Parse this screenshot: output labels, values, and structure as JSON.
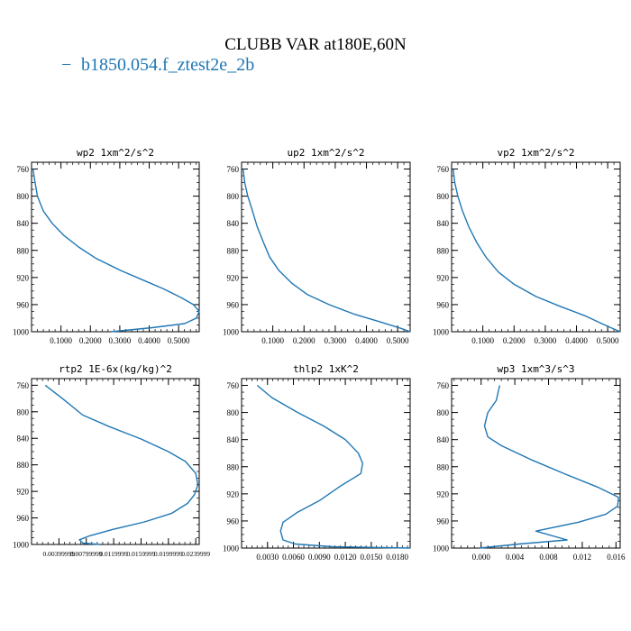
{
  "figure": {
    "title": "CLUBB VAR at180E,60N",
    "legend": {
      "label": "b1850.054.f_ztest2e_2b",
      "marker": "−",
      "color": "#1f77b4"
    }
  },
  "colors": {
    "line": "#1f77b4",
    "axis": "#000000",
    "text": "#000000",
    "background": "#ffffff"
  },
  "chart_data": [
    {
      "type": "line",
      "title": "wp2   1xm^2/s^2",
      "xlim": [
        0.0,
        0.57
      ],
      "ylim": [
        1000,
        750
      ],
      "xticks": [
        0.1,
        0.2,
        0.3,
        0.4,
        0.5
      ],
      "xticklabels": [
        "0.1000",
        "0.2000",
        "0.3000",
        "0.4000",
        "0.5000"
      ],
      "yticks": [
        760,
        800,
        840,
        880,
        920,
        960,
        1000
      ],
      "yticklabels": [
        "760",
        "800",
        "840",
        "880",
        "920",
        "960",
        "1000"
      ],
      "series": [
        {
          "name": "b1850.054.f_ztest2e_2b",
          "x": [
            0.005,
            0.01,
            0.02,
            0.04,
            0.07,
            0.11,
            0.16,
            0.22,
            0.3,
            0.38,
            0.45,
            0.51,
            0.55,
            0.57,
            0.56,
            0.52,
            0.41,
            0.27
          ],
          "y": [
            760,
            775,
            800,
            822,
            840,
            858,
            875,
            892,
            909,
            924,
            937,
            950,
            960,
            970,
            980,
            988,
            994,
            1000
          ]
        }
      ]
    },
    {
      "type": "line",
      "title": "up2   1xm^2/s^2",
      "xlim": [
        0.0,
        0.54
      ],
      "ylim": [
        1000,
        750
      ],
      "xticks": [
        0.1,
        0.2,
        0.3,
        0.4,
        0.5
      ],
      "xticklabels": [
        "0.1000",
        "0.2000",
        "0.3000",
        "0.4000",
        "0.5000"
      ],
      "yticks": [
        760,
        800,
        840,
        880,
        920,
        960,
        1000
      ],
      "yticklabels": [
        "760",
        "800",
        "840",
        "880",
        "920",
        "960",
        "1000"
      ],
      "series": [
        {
          "name": "b1850.054.f_ztest2e_2b",
          "x": [
            0.005,
            0.01,
            0.02,
            0.035,
            0.05,
            0.07,
            0.09,
            0.12,
            0.16,
            0.21,
            0.28,
            0.36,
            0.44,
            0.51,
            0.54
          ],
          "y": [
            760,
            780,
            800,
            822,
            845,
            868,
            890,
            910,
            928,
            945,
            960,
            974,
            985,
            995,
            1000
          ]
        }
      ]
    },
    {
      "type": "line",
      "title": "vp2   1xm^2/s^2",
      "xlim": [
        0.0,
        0.54
      ],
      "ylim": [
        1000,
        750
      ],
      "xticks": [
        0.1,
        0.2,
        0.3,
        0.4,
        0.5
      ],
      "xticklabels": [
        "0.1000",
        "0.2000",
        "0.3000",
        "0.4000",
        "0.5000"
      ],
      "yticks": [
        760,
        800,
        840,
        880,
        920,
        960,
        1000
      ],
      "yticklabels": [
        "760",
        "800",
        "840",
        "880",
        "920",
        "960",
        "1000"
      ],
      "series": [
        {
          "name": "b1850.054.f_ztest2e_2b",
          "x": [
            0.005,
            0.01,
            0.02,
            0.035,
            0.055,
            0.08,
            0.11,
            0.15,
            0.2,
            0.27,
            0.35,
            0.43,
            0.5,
            0.54
          ],
          "y": [
            760,
            780,
            800,
            822,
            845,
            868,
            890,
            912,
            930,
            948,
            963,
            977,
            992,
            1000
          ]
        }
      ]
    },
    {
      "type": "line",
      "title": "rtp2   1E-6x(kg/kg)^2",
      "xlim": [
        0.0,
        0.0245
      ],
      "ylim": [
        1000,
        750
      ],
      "xticks": [
        0.00399999,
        0.00799999,
        0.0119999,
        0.0159999,
        0.0199999,
        0.0239999
      ],
      "xticklabels": [
        "0.00399999",
        "0.00799999",
        "0.0119999",
        "0.0159999",
        "0.0199999",
        "0.0239999"
      ],
      "yticks": [
        760,
        800,
        840,
        880,
        920,
        960,
        1000
      ],
      "yticklabels": [
        "760",
        "800",
        "840",
        "880",
        "920",
        "960",
        "1000"
      ],
      "series": [
        {
          "name": "b1850.054.f_ztest2e_2b",
          "x": [
            0.002,
            0.0045,
            0.0075,
            0.0115,
            0.016,
            0.02,
            0.0225,
            0.024,
            0.0243,
            0.0238,
            0.0228,
            0.0205,
            0.0165,
            0.012,
            0.0085,
            0.007,
            0.0075,
            0.01
          ],
          "y": [
            760,
            780,
            805,
            823,
            841,
            860,
            875,
            893,
            910,
            925,
            938,
            953,
            966,
            977,
            987,
            993,
            998,
            1000
          ]
        }
      ]
    },
    {
      "type": "line",
      "title": "thlp2   1xK^2",
      "xlim": [
        0.0,
        0.0195
      ],
      "ylim": [
        1000,
        750
      ],
      "xticks": [
        0.003,
        0.006,
        0.009,
        0.012,
        0.015,
        0.018
      ],
      "xticklabels": [
        "0.0030",
        "0.0060",
        "0.0090",
        "0.0120",
        "0.0150",
        "0.0180"
      ],
      "yticks": [
        760,
        800,
        840,
        880,
        920,
        960,
        1000
      ],
      "yticklabels": [
        "760",
        "800",
        "840",
        "880",
        "920",
        "960",
        "1000"
      ],
      "series": [
        {
          "name": "b1850.054.f_ztest2e_2b",
          "x": [
            0.0018,
            0.0035,
            0.0065,
            0.0095,
            0.012,
            0.0135,
            0.014,
            0.0138,
            0.0115,
            0.009,
            0.0065,
            0.0048,
            0.0045,
            0.0048,
            0.0062,
            0.0105,
            0.0195
          ],
          "y": [
            760,
            778,
            800,
            820,
            840,
            860,
            875,
            890,
            908,
            930,
            947,
            962,
            975,
            988,
            994,
            998,
            1000
          ]
        }
      ]
    },
    {
      "type": "line",
      "title": "wp3   1xm^3/s^3",
      "xlim": [
        -0.0035,
        0.0165
      ],
      "ylim": [
        1000,
        750
      ],
      "xticks": [
        0.0,
        0.004,
        0.008,
        0.012,
        0.016
      ],
      "xticklabels": [
        "0.000",
        "0.004",
        "0.008",
        "0.012",
        "0.016"
      ],
      "yticks": [
        760,
        800,
        840,
        880,
        920,
        960,
        1000
      ],
      "yticklabels": [
        "760",
        "800",
        "840",
        "880",
        "920",
        "960",
        "1000"
      ],
      "series": [
        {
          "name": "b1850.054.f_ztest2e_2b",
          "x": [
            0.0022,
            0.0018,
            0.0008,
            0.0004,
            0.0008,
            0.0024,
            0.006,
            0.01,
            0.0138,
            0.0163,
            0.0162,
            0.0148,
            0.0115,
            0.0065,
            0.0102,
            0.0045,
            -0.0002
          ],
          "y": [
            760,
            782,
            800,
            820,
            836,
            849,
            870,
            891,
            910,
            925,
            938,
            950,
            962,
            975,
            988,
            994,
            1000
          ]
        }
      ]
    }
  ]
}
